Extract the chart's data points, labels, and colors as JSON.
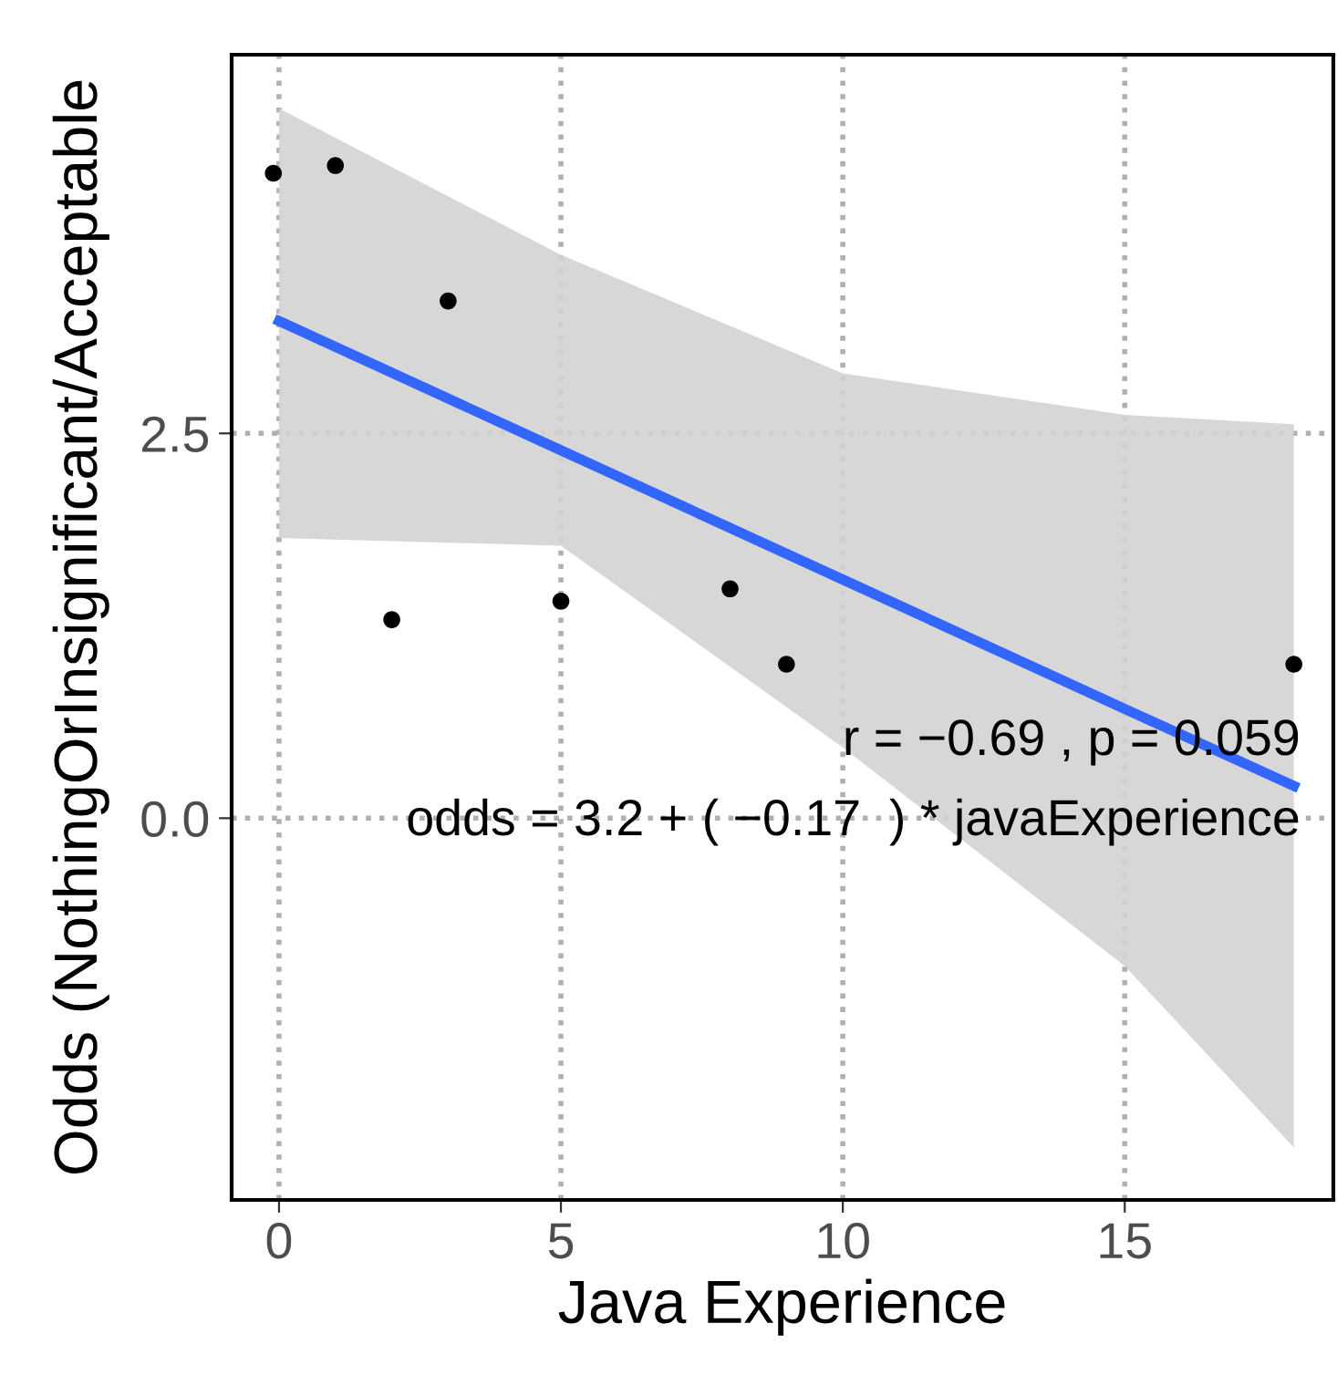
{
  "chart_data": {
    "type": "scatter",
    "xlabel": "Java Experience",
    "ylabel": "Odds (NothingOrInsignificant/Acceptable",
    "series": [
      {
        "marker": "circle",
        "color": "#000000",
        "x": [
          -0.1,
          1,
          3,
          2,
          5,
          8,
          9,
          18
        ],
        "values": [
          4.19,
          4.24,
          3.36,
          1.29,
          1.41,
          1.49,
          1.0,
          1.0
        ]
      },
      {
        "type": "line",
        "color": "#3366ff",
        "x": [
          0,
          5,
          10,
          15,
          18
        ],
        "values": [
          3.23,
          2.39,
          1.55,
          0.71,
          0.21
        ],
        "lower": [
          1.82,
          1.77,
          0.46,
          -0.96,
          -2.14
        ],
        "upper": [
          4.61,
          3.66,
          2.89,
          2.62,
          2.56
        ]
      }
    ],
    "xlim": [
      -0.84,
      18.7
    ],
    "ylim": [
      -2.48,
      4.96
    ],
    "xticks": [
      0,
      5,
      10,
      15
    ],
    "yticks": [
      {
        "value": 0,
        "label": "0.0"
      },
      {
        "value": 2.5,
        "label": "2.5"
      }
    ],
    "grid": true,
    "line_style": "solid",
    "annotations": [
      "r = −0.69 , p = 0.059",
      "odds = 3.2 + ( −0.17  ) * javaExperience"
    ]
  }
}
